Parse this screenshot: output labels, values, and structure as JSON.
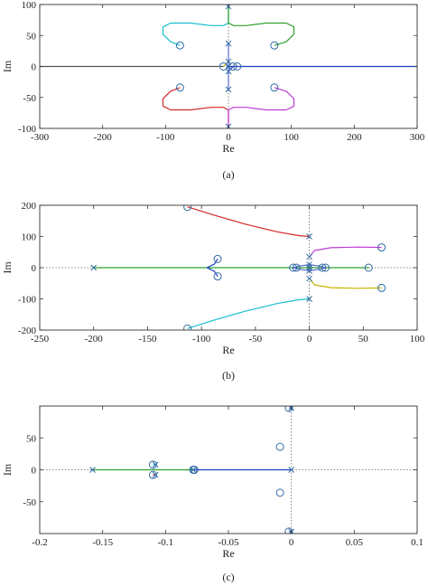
{
  "chart_data": [
    {
      "type": "line",
      "panel": "a",
      "caption": "(a)",
      "xlabel": "Re",
      "ylabel": "Im",
      "xlim": [
        -300,
        300
      ],
      "ylim": [
        -100,
        100
      ],
      "xticks": [
        -300,
        -200,
        -100,
        0,
        100,
        200,
        300
      ],
      "yticks": [
        -100,
        -50,
        0,
        50,
        100
      ],
      "grid": false,
      "zero_lines": true,
      "poles": [
        [
          0,
          97
        ],
        [
          0,
          -97
        ],
        [
          0,
          37
        ],
        [
          0,
          -37
        ],
        [
          0,
          8
        ],
        [
          0,
          -8
        ],
        [
          0,
          0
        ]
      ],
      "zeros": [
        [
          -77,
          34
        ],
        [
          73,
          34
        ],
        [
          -77,
          -34
        ],
        [
          73,
          -34
        ],
        [
          -8,
          0
        ],
        [
          7,
          0
        ],
        [
          14,
          0
        ]
      ],
      "series": [
        {
          "color": "#17becf",
          "points": [
            [
              -77,
              34
            ],
            [
              -92,
              40
            ],
            [
              -104,
              52
            ],
            [
              -104,
              64
            ],
            [
              -92,
              70
            ],
            [
              -60,
              70
            ],
            [
              -28,
              66
            ],
            [
              -8,
              66
            ],
            [
              0,
              70
            ],
            [
              0,
              97
            ]
          ]
        },
        {
          "color": "#2ca02c",
          "points": [
            [
              0,
              97
            ],
            [
              0,
              70
            ],
            [
              8,
              66
            ],
            [
              28,
              66
            ],
            [
              60,
              70
            ],
            [
              92,
              70
            ],
            [
              104,
              64
            ],
            [
              104,
              52
            ],
            [
              92,
              40
            ],
            [
              73,
              34
            ]
          ]
        },
        {
          "color": "#d62728",
          "points": [
            [
              0,
              -97
            ],
            [
              0,
              -70
            ],
            [
              -8,
              -66
            ],
            [
              -28,
              -66
            ],
            [
              -60,
              -70
            ],
            [
              -92,
              -70
            ],
            [
              -104,
              -64
            ],
            [
              -104,
              -52
            ],
            [
              -92,
              -40
            ],
            [
              -77,
              -34
            ]
          ]
        },
        {
          "color": "#bd3bd6",
          "points": [
            [
              0,
              -97
            ],
            [
              0,
              -70
            ],
            [
              8,
              -66
            ],
            [
              28,
              -66
            ],
            [
              60,
              -70
            ],
            [
              92,
              -70
            ],
            [
              104,
              -64
            ],
            [
              104,
              -52
            ],
            [
              92,
              -40
            ],
            [
              73,
              -34
            ]
          ]
        },
        {
          "color": "#5a6bd6",
          "points": [
            [
              0,
              37
            ],
            [
              0,
              -37
            ]
          ]
        },
        {
          "color": "#c8b400",
          "points": [
            [
              0,
              8
            ],
            [
              -4,
              4
            ],
            [
              -8,
              0
            ]
          ]
        },
        {
          "color": "#1f3cc8",
          "points": [
            [
              0,
              -8
            ],
            [
              4,
              -4
            ],
            [
              7,
              0
            ]
          ]
        },
        {
          "color": "#1f3cc8",
          "points": [
            [
              0,
              0
            ],
            [
              14,
              0
            ],
            [
              300,
              0
            ]
          ]
        },
        {
          "color": "#555555",
          "points": [
            [
              -300,
              0
            ],
            [
              -8,
              0
            ]
          ]
        }
      ]
    },
    {
      "type": "line",
      "panel": "b",
      "caption": "(b)",
      "xlabel": "Re",
      "ylabel": "Im",
      "xlim": [
        -250,
        100
      ],
      "ylim": [
        -200,
        200
      ],
      "xticks": [
        -250,
        -200,
        -150,
        -100,
        -50,
        0,
        50,
        100
      ],
      "yticks": [
        -200,
        -100,
        0,
        100,
        200
      ],
      "grid": false,
      "zero_lines": true,
      "poles": [
        [
          -200,
          0
        ],
        [
          0,
          100
        ],
        [
          0,
          -100
        ],
        [
          0,
          35
        ],
        [
          0,
          -35
        ],
        [
          0,
          10
        ],
        [
          0,
          -10
        ],
        [
          0,
          0
        ]
      ],
      "zeros": [
        [
          -113,
          195
        ],
        [
          -113,
          -195
        ],
        [
          -85,
          28
        ],
        [
          -85,
          -28
        ],
        [
          67,
          65
        ],
        [
          67,
          -65
        ],
        [
          -15,
          0
        ],
        [
          -12,
          0
        ],
        [
          12,
          0
        ],
        [
          15,
          0
        ],
        [
          55,
          0
        ]
      ],
      "series": [
        {
          "color": "#d62728",
          "points": [
            [
              -113,
              195
            ],
            [
              -90,
              170
            ],
            [
              -60,
              140
            ],
            [
              -30,
              115
            ],
            [
              -10,
              103
            ],
            [
              0,
              100
            ]
          ]
        },
        {
          "color": "#17becf",
          "points": [
            [
              -113,
              -195
            ],
            [
              -90,
              -170
            ],
            [
              -60,
              -140
            ],
            [
              -30,
              -115
            ],
            [
              -10,
              -103
            ],
            [
              0,
              -100
            ]
          ]
        },
        {
          "color": "#bd3bd6",
          "points": [
            [
              0,
              35
            ],
            [
              5,
              55
            ],
            [
              20,
              64
            ],
            [
              45,
              66
            ],
            [
              67,
              65
            ]
          ]
        },
        {
          "color": "#c8b400",
          "points": [
            [
              0,
              -35
            ],
            [
              5,
              -55
            ],
            [
              20,
              -64
            ],
            [
              45,
              -66
            ],
            [
              67,
              -65
            ]
          ]
        },
        {
          "color": "#2ca02c",
          "points": [
            [
              -200,
              0
            ],
            [
              -95,
              0
            ],
            [
              55,
              0
            ]
          ]
        },
        {
          "color": "#1f3cc8",
          "points": [
            [
              -95,
              0
            ],
            [
              -88,
              12
            ],
            [
              -85,
              28
            ]
          ]
        },
        {
          "color": "#1f3cc8",
          "points": [
            [
              -95,
              0
            ],
            [
              -88,
              -12
            ],
            [
              -85,
              -28
            ]
          ]
        },
        {
          "color": "#5a6bd6",
          "points": [
            [
              -15,
              0
            ],
            [
              -10,
              5
            ],
            [
              0,
              10
            ],
            [
              10,
              5
            ],
            [
              15,
              0
            ]
          ]
        },
        {
          "color": "#5a6bd6",
          "points": [
            [
              -15,
              0
            ],
            [
              -10,
              -5
            ],
            [
              0,
              -10
            ],
            [
              10,
              -5
            ],
            [
              15,
              0
            ]
          ]
        }
      ]
    },
    {
      "type": "line",
      "panel": "c",
      "caption": "(c)",
      "xlabel": "Re",
      "ylabel": "Im",
      "xlim": [
        -0.2,
        0.1
      ],
      "ylim": [
        -100,
        100
      ],
      "xticks": [
        -0.2,
        -0.15,
        -0.1,
        -0.05,
        0,
        0.05,
        0.1
      ],
      "yticks": [
        -50,
        0,
        50
      ],
      "grid": false,
      "zero_lines": true,
      "poles": [
        [
          -0.158,
          0
        ],
        [
          -0.108,
          8
        ],
        [
          -0.108,
          -8
        ],
        [
          -0.078,
          0
        ],
        [
          0,
          97
        ],
        [
          0,
          -97
        ],
        [
          0,
          0
        ]
      ],
      "zeros": [
        [
          -0.11,
          8
        ],
        [
          -0.11,
          -8
        ],
        [
          -0.078,
          0
        ],
        [
          -0.077,
          0
        ],
        [
          -0.009,
          36
        ],
        [
          -0.009,
          -36
        ],
        [
          -0.002,
          97
        ],
        [
          -0.002,
          -97
        ]
      ],
      "series": [
        {
          "color": "#2ca02c",
          "points": [
            [
              -0.158,
              0
            ],
            [
              -0.078,
              0
            ]
          ]
        },
        {
          "color": "#1f3cc8",
          "points": [
            [
              -0.078,
              0
            ],
            [
              0,
              0
            ]
          ]
        },
        {
          "color": "#17becf",
          "points": [
            [
              -0.108,
              8
            ],
            [
              -0.11,
              8
            ]
          ]
        },
        {
          "color": "#d62728",
          "points": [
            [
              -0.108,
              -8
            ],
            [
              -0.11,
              -8
            ]
          ]
        },
        {
          "color": "#5a6bd6",
          "points": [
            [
              0,
              97
            ],
            [
              -0.002,
              97
            ]
          ]
        },
        {
          "color": "#5a6bd6",
          "points": [
            [
              0,
              -97
            ],
            [
              -0.002,
              -97
            ]
          ]
        }
      ]
    }
  ]
}
